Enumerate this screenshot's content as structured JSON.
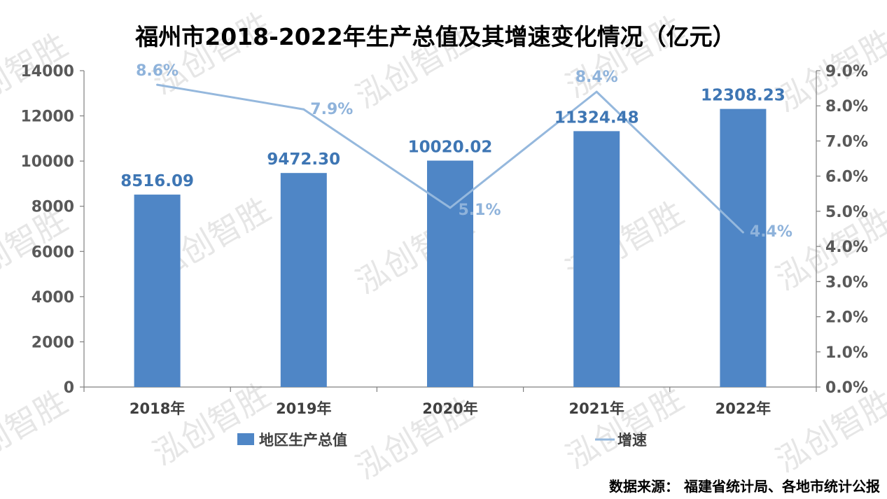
{
  "chart_data": {
    "type": "bar",
    "title": "福州市2018-2022年生产总值及其增速变化情况（亿元）",
    "categories": [
      "2018年",
      "2019年",
      "2020年",
      "2021年",
      "2022年"
    ],
    "series": [
      {
        "name": "地区生产总值",
        "type": "bar",
        "axis": "left",
        "values": [
          8516.09,
          9472.3,
          10020.02,
          11324.48,
          12308.23
        ],
        "labels": [
          "8516.09",
          "9472.30",
          "10020.02",
          "11324.48",
          "12308.23"
        ],
        "color": "#4f86c6"
      },
      {
        "name": "增速",
        "type": "line",
        "axis": "right",
        "values": [
          8.6,
          7.9,
          5.1,
          8.4,
          4.4
        ],
        "labels": [
          "8.6%",
          "7.9%",
          "5.1%",
          "8.4%",
          "4.4%"
        ],
        "color": "#95b8dd"
      }
    ],
    "y_left": {
      "min": 0,
      "max": 14000,
      "step": 2000,
      "ticks": [
        "0",
        "2000",
        "4000",
        "6000",
        "8000",
        "10000",
        "12000",
        "14000"
      ]
    },
    "y_right": {
      "min": 0,
      "max": 9,
      "step": 1,
      "ticks": [
        "0.0%",
        "1.0%",
        "2.0%",
        "3.0%",
        "4.0%",
        "5.0%",
        "6.0%",
        "7.0%",
        "8.0%",
        "9.0%"
      ]
    },
    "grid": false,
    "legend_position": "bottom"
  },
  "source_note": "数据来源：  福建省统计局、各地市统计公报",
  "watermark": "泓创智胜",
  "colors": {
    "bar_label": "#3e76b4",
    "rate_label": "#8fb3db",
    "axis": "#7f7f7f"
  }
}
